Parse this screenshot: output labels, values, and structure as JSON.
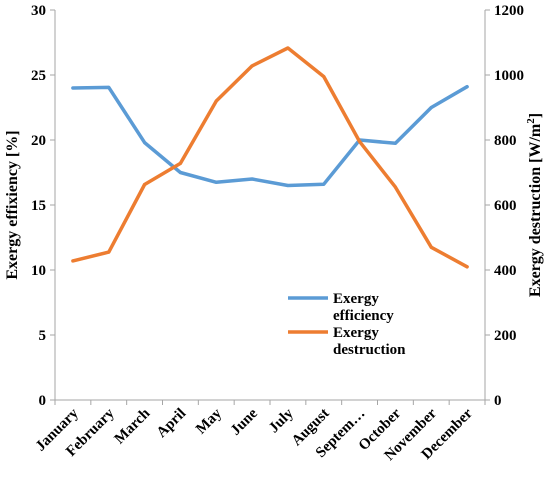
{
  "chart_data": {
    "type": "line",
    "categories": [
      "January",
      "February",
      "March",
      "April",
      "May",
      "June",
      "July",
      "August",
      "Septem…",
      "October",
      "November",
      "December"
    ],
    "series": [
      {
        "name": "Exergy efficiency",
        "axis": "left",
        "color": "#5B9BD5",
        "values": [
          24.0,
          24.05,
          19.8,
          17.5,
          16.75,
          17.0,
          16.5,
          16.6,
          20.0,
          19.75,
          22.5,
          24.1
        ]
      },
      {
        "name": "Exergy destruction",
        "axis": "right",
        "color": "#ED7D31",
        "values": [
          428,
          455,
          663,
          728,
          920,
          1028,
          1083,
          995,
          795,
          655,
          470,
          410
        ]
      }
    ],
    "ylabel": "Exergy effixiency [%]",
    "ylabel_right_prefix": "Exergy destruction [W/m",
    "ylabel_right_sup": "2",
    "ylabel_right_suffix": "]",
    "ylim": [
      0,
      30
    ],
    "y2lim": [
      0,
      1200
    ],
    "yticks": [
      "0",
      "5",
      "10",
      "15",
      "20",
      "25",
      "30"
    ],
    "y2ticks": [
      "0",
      "200",
      "400",
      "600",
      "800",
      "1000",
      "1200"
    ],
    "grid": false,
    "legend": {
      "position": "lower-right",
      "entries": [
        {
          "line1": "Exergy",
          "line2": "efficiency",
          "color": "#5B9BD5"
        },
        {
          "line1": "Exergy",
          "line2": "destruction",
          "color": "#ED7D31"
        }
      ]
    }
  }
}
